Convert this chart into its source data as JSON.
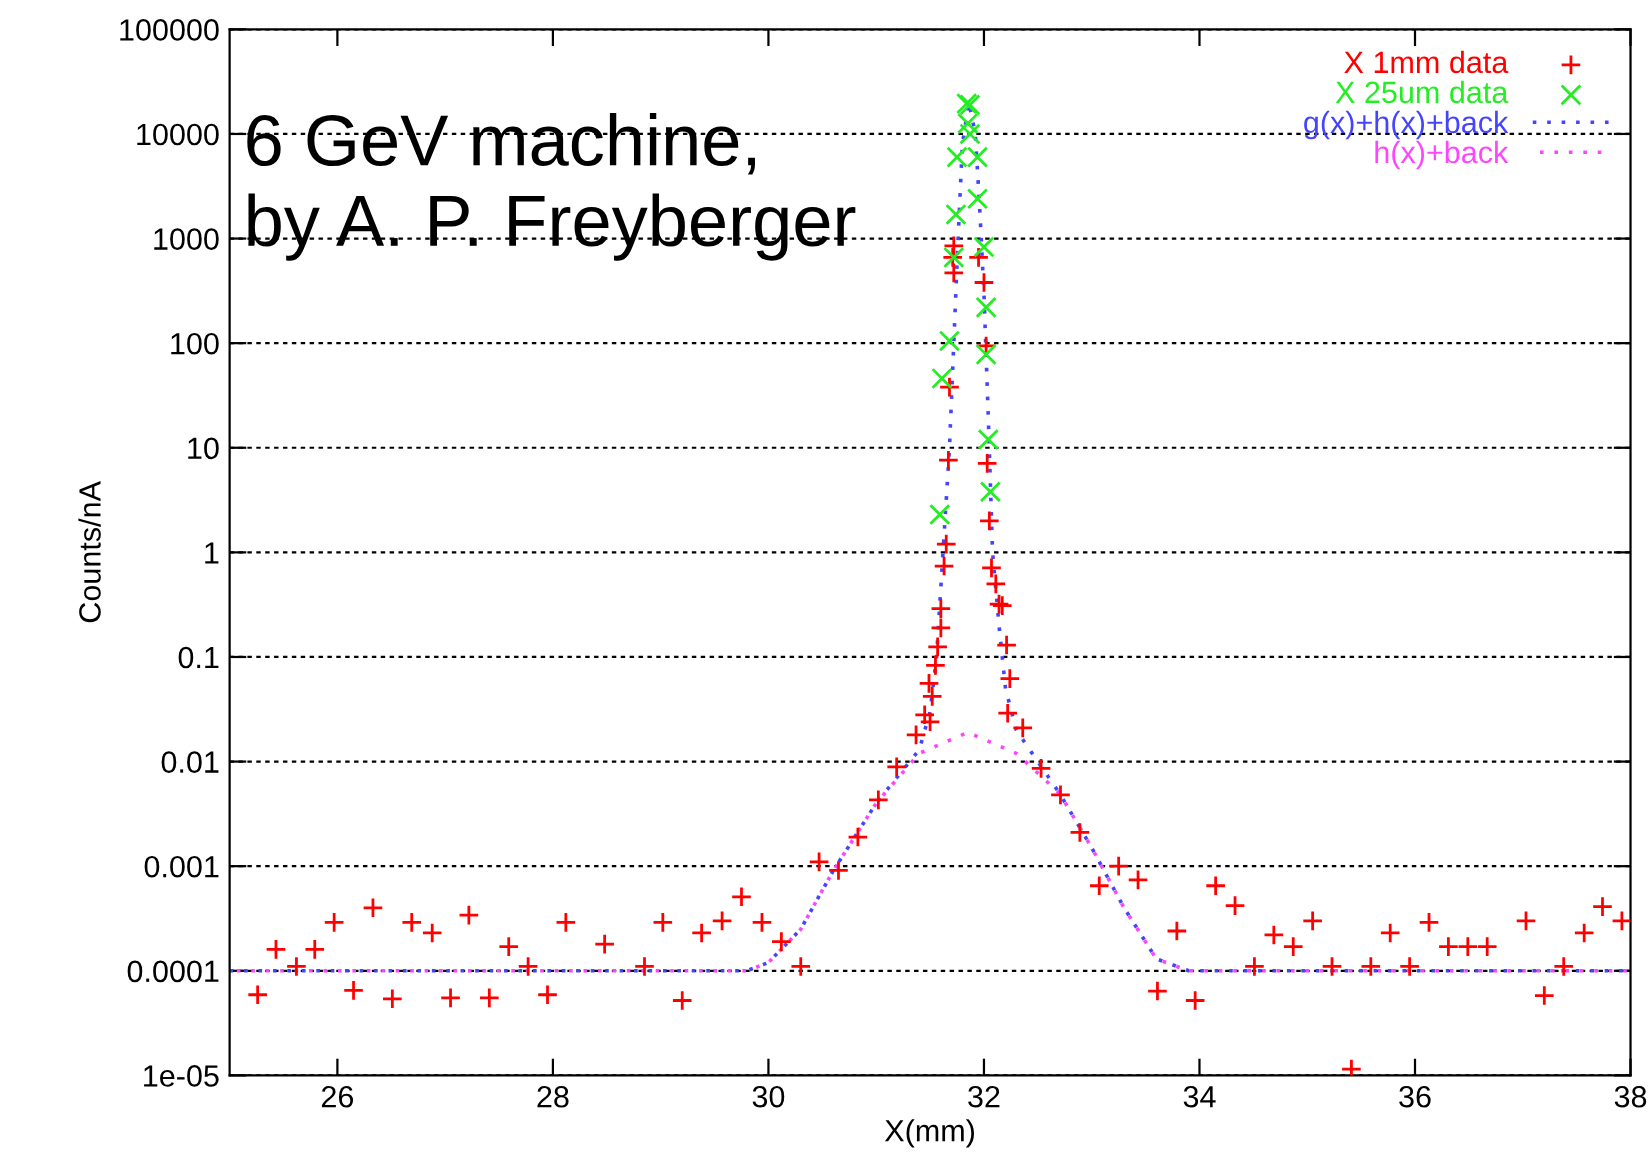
{
  "chart_data": {
    "type": "scatter",
    "xlabel": "X(mm)",
    "ylabel": "Counts/nA",
    "log": "y",
    "grid": "y",
    "legend": "top right",
    "xlim": [
      25,
      38
    ],
    "xticks": [
      26,
      28,
      30,
      32,
      34,
      36,
      38
    ],
    "ylim": [
      1e-05,
      100000
    ],
    "yticks": [
      {
        "value": 1e-05,
        "label": "1e-05"
      },
      {
        "value": 0.0001,
        "label": "0.0001"
      },
      {
        "value": 0.001,
        "label": "0.001"
      },
      {
        "value": 0.01,
        "label": "0.01"
      },
      {
        "value": 0.1,
        "label": "0.1"
      },
      {
        "value": 1,
        "label": "1"
      },
      {
        "value": 10,
        "label": "10"
      },
      {
        "value": 100,
        "label": "100"
      },
      {
        "value": 1000,
        "label": "1000"
      },
      {
        "value": 10000,
        "label": "10000"
      },
      {
        "value": 100000,
        "label": "100000"
      }
    ],
    "annotations": [
      "6 GeV machine,\nby A. P. Freyberger"
    ],
    "series": [
      {
        "name": "X 1mm data",
        "marker": "plus",
        "color": "#ff0000",
        "x": [
          25.26,
          25.43,
          25.62,
          25.79,
          25.97,
          26.15,
          26.33,
          26.51,
          26.69,
          26.88,
          27.05,
          27.22,
          27.41,
          27.59,
          27.77,
          27.95,
          28.12,
          28.48,
          28.85,
          29.02,
          29.2,
          29.38,
          29.57,
          29.75,
          29.94,
          30.12,
          30.3,
          30.47,
          30.65,
          30.83,
          31.02,
          31.19,
          31.37,
          31.45,
          31.5,
          31.49,
          31.52,
          31.55,
          31.57,
          31.6,
          31.6,
          31.63,
          31.65,
          31.67,
          31.68,
          31.71,
          31.72,
          31.72,
          31.95,
          32.0,
          32.02,
          32.03,
          32.05,
          32.07,
          32.11,
          32.14,
          32.17,
          32.21,
          32.24,
          32.22,
          32.36,
          32.53,
          32.71,
          32.89,
          33.07,
          33.25,
          33.43,
          33.61,
          33.79,
          33.96,
          34.15,
          34.33,
          34.51,
          34.69,
          34.87,
          35.05,
          35.23,
          35.41,
          35.59,
          35.77,
          35.95,
          36.13,
          36.31,
          36.49,
          36.67,
          37.03,
          37.2,
          37.38,
          37.57,
          37.74,
          37.92
        ],
        "values": [
          5.9e-05,
          0.00016,
          0.00011,
          0.00016,
          0.00029,
          6.5e-05,
          0.0004,
          5.4e-05,
          0.00029,
          0.00023,
          5.5e-05,
          0.00034,
          5.5e-05,
          0.00017,
          0.00011,
          5.9e-05,
          0.00029,
          0.00018,
          0.00011,
          0.00029,
          5.2e-05,
          0.00023,
          0.0003,
          0.00051,
          0.00029,
          0.00019,
          0.00011,
          0.0011,
          0.00091,
          0.0019,
          0.0043,
          0.0089,
          0.018,
          0.028,
          0.024,
          0.056,
          0.042,
          0.083,
          0.125,
          0.19,
          0.29,
          0.74,
          1.2,
          7.6,
          38,
          660,
          470,
          850,
          660,
          380,
          94,
          7.1,
          2.0,
          0.71,
          0.5,
          0.32,
          0.31,
          0.13,
          0.062,
          0.029,
          0.021,
          0.0086,
          0.0048,
          0.0021,
          0.00065,
          0.001,
          0.00074,
          6.4e-05,
          0.00024,
          5.2e-05,
          0.00065,
          0.00042,
          0.00011,
          0.00022,
          0.00017,
          0.0003,
          0.00011,
          1.15e-05,
          0.00011,
          0.00023,
          0.00011,
          0.00029,
          0.00017,
          0.00017,
          0.00017,
          0.0003,
          5.8e-05,
          0.00011,
          0.00023,
          0.00041,
          0.0003
        ]
      },
      {
        "name": "X 25um data",
        "marker": "cross",
        "color": "#22ee22",
        "x": [
          31.84,
          31.87,
          31.85,
          31.87,
          31.75,
          31.94,
          31.74,
          31.94,
          31.72,
          32.0,
          32.02,
          31.68,
          32.02,
          31.61,
          32.04,
          32.06,
          31.59
        ],
        "values": [
          19500,
          19000,
          12600,
          10000,
          6000,
          6000,
          1700,
          2400,
          660,
          830,
          220,
          105,
          78,
          46,
          12,
          3.8,
          2.3
        ]
      },
      {
        "name": "g(x)+h(x)+back",
        "type": "line",
        "line_style": "dotted",
        "color": "#4444ff",
        "x": [
          25,
          29.8,
          30.0,
          30.3,
          30.6,
          31.0,
          31.4,
          31.5,
          31.56,
          31.62,
          31.68,
          31.72,
          31.76,
          31.8,
          31.86,
          31.92,
          31.96,
          32.0,
          32.04,
          32.08,
          32.14,
          32.2,
          32.3,
          32.7,
          33.0,
          33.3,
          33.6,
          33.9,
          38
        ],
        "values": [
          0.0001,
          0.0001,
          0.00012,
          0.00025,
          0.0009,
          0.004,
          0.013,
          0.03,
          0.1,
          1,
          10,
          100,
          1000,
          8000,
          20000,
          10000,
          2000,
          300,
          20,
          1,
          0.2,
          0.05,
          0.02,
          0.005,
          0.0015,
          0.0004,
          0.00013,
          0.0001,
          0.0001
        ]
      },
      {
        "name": "h(x)+back",
        "type": "line",
        "line_style": "dotted",
        "color": "#ff44ff",
        "x": [
          25,
          29.8,
          30.0,
          30.3,
          30.6,
          31.0,
          31.4,
          31.85,
          32.3,
          32.7,
          33.0,
          33.3,
          33.6,
          33.9,
          38
        ],
        "values": [
          0.0001,
          0.0001,
          0.00012,
          0.00025,
          0.0009,
          0.004,
          0.012,
          0.019,
          0.012,
          0.005,
          0.0015,
          0.0004,
          0.00013,
          0.0001,
          0.0001
        ]
      }
    ]
  }
}
